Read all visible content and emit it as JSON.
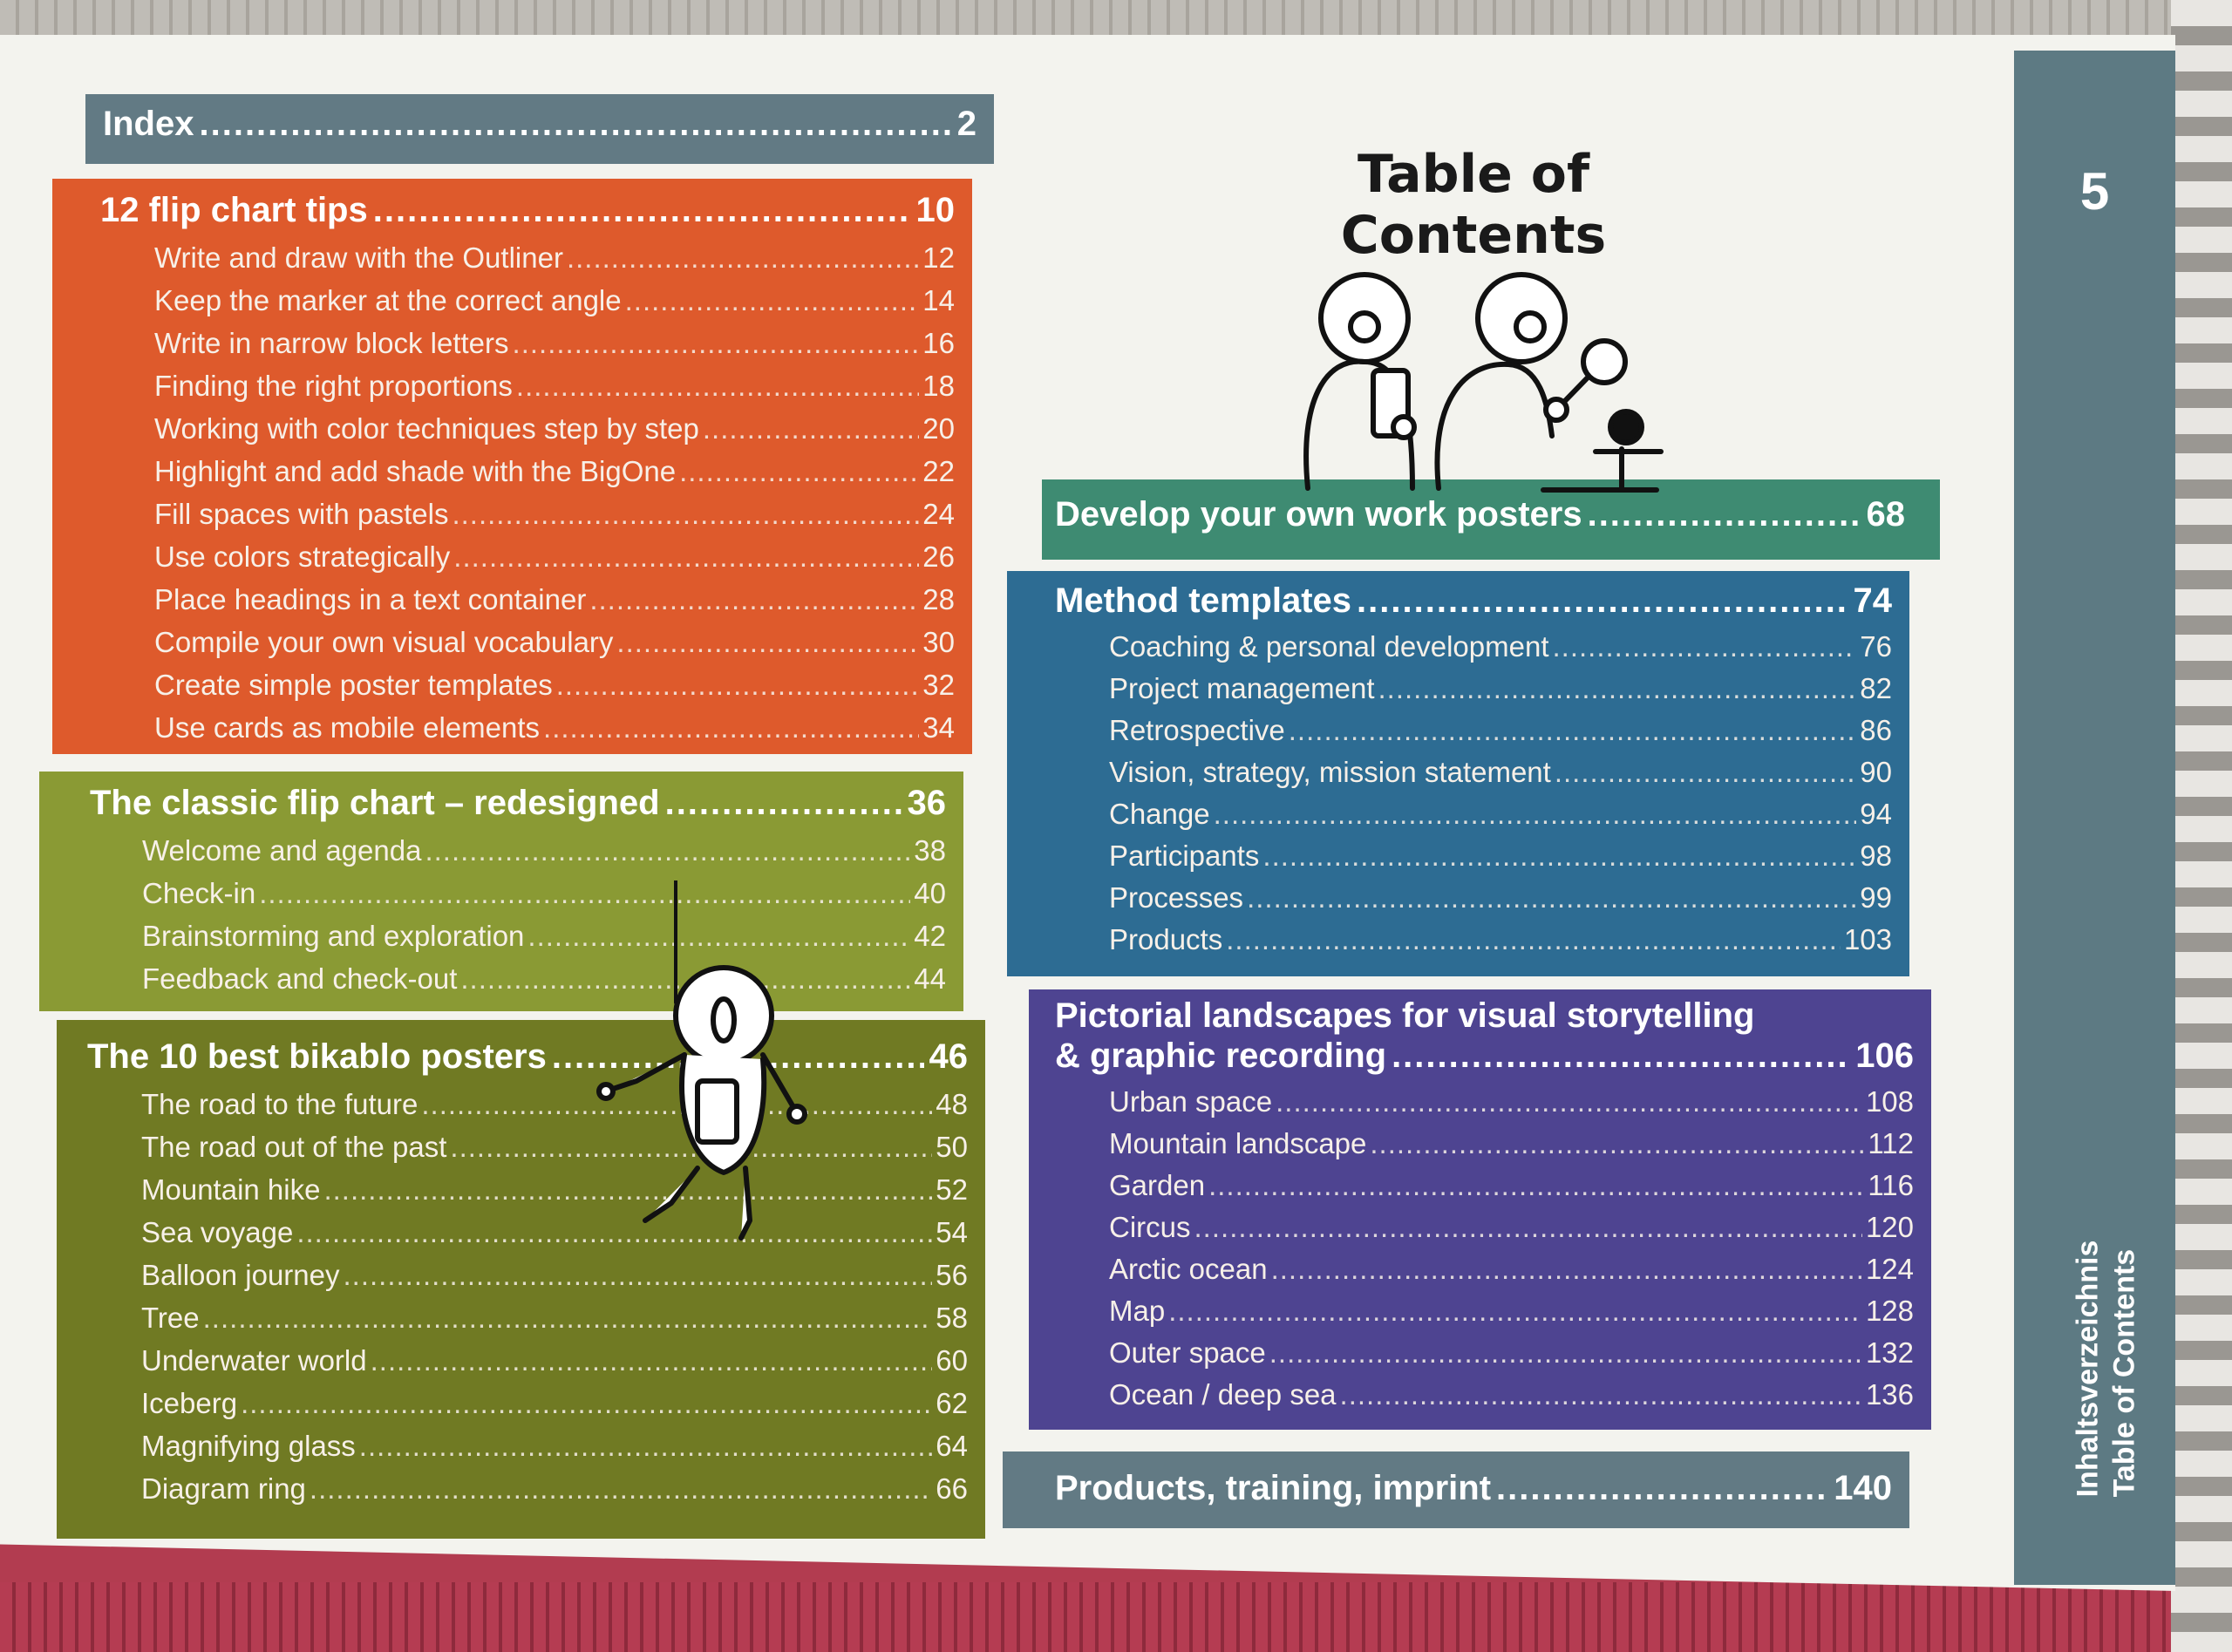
{
  "page_number": "5",
  "side_label": {
    "line1": "Inhaltsverzeichnis",
    "line2": "Table of Contents"
  },
  "title": "Table of Contents",
  "sections": {
    "index": {
      "title": "Index",
      "page": "2"
    },
    "flip": {
      "title": "12 flip chart tips",
      "page": "10",
      "items": [
        {
          "label": "Write and draw with the Outliner",
          "page": "12"
        },
        {
          "label": "Keep the marker at the correct angle",
          "page": "14"
        },
        {
          "label": "Write in narrow block letters",
          "page": "16"
        },
        {
          "label": "Finding the right proportions",
          "page": "18"
        },
        {
          "label": "Working with color techniques step by step",
          "page": "20"
        },
        {
          "label": "Highlight and add shade with the BigOne",
          "page": "22"
        },
        {
          "label": "Fill spaces with pastels",
          "page": "24"
        },
        {
          "label": "Use colors strategically",
          "page": "26"
        },
        {
          "label": "Place headings in a text container",
          "page": "28"
        },
        {
          "label": "Compile your own visual vocabulary",
          "page": "30"
        },
        {
          "label": "Create simple poster templates",
          "page": "32"
        },
        {
          "label": "Use cards as mobile elements",
          "page": "34"
        }
      ]
    },
    "classic": {
      "title": "The classic flip chart – redesigned",
      "page": "36",
      "items": [
        {
          "label": "Welcome and agenda",
          "page": "38"
        },
        {
          "label": "Check-in",
          "page": "40"
        },
        {
          "label": "Brainstorming and exploration",
          "page": "42"
        },
        {
          "label": "Feedback and check-out",
          "page": "44"
        }
      ]
    },
    "best": {
      "title": "The 10 best bikablo posters",
      "page": "46",
      "items": [
        {
          "label": "The road to the future",
          "page": "48"
        },
        {
          "label": "The road out of the past",
          "page": "50"
        },
        {
          "label": "Mountain hike",
          "page": "52"
        },
        {
          "label": "Sea voyage",
          "page": "54"
        },
        {
          "label": "Balloon journey",
          "page": "56"
        },
        {
          "label": "Tree",
          "page": "58"
        },
        {
          "label": "Underwater world",
          "page": "60"
        },
        {
          "label": "Iceberg",
          "page": "62"
        },
        {
          "label": "Magnifying glass",
          "page": "64"
        },
        {
          "label": "Diagram ring",
          "page": "66"
        }
      ]
    },
    "develop": {
      "title": "Develop your own work posters",
      "page": "68"
    },
    "method": {
      "title": "Method templates",
      "page": "74",
      "items": [
        {
          "label": "Coaching & personal development",
          "page": "76"
        },
        {
          "label": "Project management",
          "page": "82"
        },
        {
          "label": "Retrospective",
          "page": "86"
        },
        {
          "label": "Vision, strategy, mission statement",
          "page": "90"
        },
        {
          "label": "Change",
          "page": "94"
        },
        {
          "label": "Participants",
          "page": "98"
        },
        {
          "label": "Processes",
          "page": "99"
        },
        {
          "label": "Products",
          "page": "103"
        }
      ]
    },
    "pict": {
      "title_line1": "Pictorial landscapes for visual storytelling",
      "title_line2": "& graphic recording",
      "page": "106",
      "items": [
        {
          "label": "Urban space",
          "page": "108"
        },
        {
          "label": "Mountain landscape",
          "page": "112"
        },
        {
          "label": "Garden",
          "page": "116"
        },
        {
          "label": "Circus",
          "page": "120"
        },
        {
          "label": "Arctic ocean",
          "page": "124"
        },
        {
          "label": "Map",
          "page": "128"
        },
        {
          "label": "Outer space",
          "page": "132"
        },
        {
          "label": "Ocean / deep sea",
          "page": "136"
        }
      ]
    },
    "products": {
      "title": "Products, training, imprint",
      "page": "140"
    }
  },
  "colors": {
    "index": "#627a84",
    "flip": "#de5a2c",
    "classic": "#8a9a34",
    "best": "#707a23",
    "develop": "#3e8b72",
    "method": "#2d6c93",
    "pict": "#4e4491",
    "products": "#627a84",
    "tab": "#5d7a83"
  }
}
